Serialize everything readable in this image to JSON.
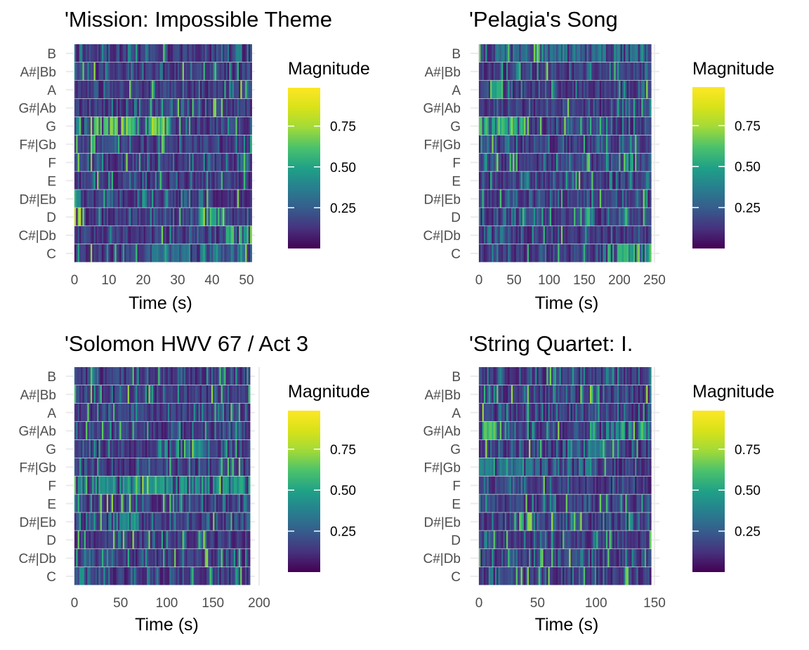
{
  "colors": {
    "viridis_low": "#440154",
    "viridis_mid": "#21918c",
    "viridis_high": "#fde725",
    "grid": "#ebebeb",
    "tick_text": "#4d4d4d",
    "title_text": "#000000"
  },
  "chart_data": [
    {
      "type": "heatmap",
      "title": "'Mission: Impossible Theme",
      "xlabel": "Time (s)",
      "ylabel": "",
      "pitch_classes": [
        "C",
        "C#|Db",
        "D",
        "D#|Eb",
        "E",
        "F",
        "F#|Gb",
        "G",
        "G#|Ab",
        "A",
        "A#|Bb",
        "B"
      ],
      "xlim": [
        0,
        52
      ],
      "xticks": [
        0,
        10,
        20,
        30,
        40,
        50
      ],
      "duration": 51.5,
      "legend": {
        "title": "Magnitude",
        "ticks": [
          0.25,
          0.5,
          0.75
        ],
        "placement": "right"
      },
      "highlights": [
        {
          "pitch": "G",
          "start": 4,
          "end": 27,
          "level": 0.85
        },
        {
          "pitch": "D",
          "start": 0,
          "end": 3,
          "level": 0.9
        },
        {
          "pitch": "D",
          "start": 36,
          "end": 42,
          "level": 0.8
        },
        {
          "pitch": "C#|Db",
          "start": 44,
          "end": 51.5,
          "level": 0.7
        },
        {
          "pitch": "D#|Eb",
          "start": 0,
          "end": 3,
          "level": 0.65
        },
        {
          "pitch": "C",
          "start": 20,
          "end": 50,
          "level": 0.45
        }
      ],
      "grid": true
    },
    {
      "type": "heatmap",
      "title": "'Pelagia's Song",
      "xlabel": "Time (s)",
      "ylabel": "",
      "pitch_classes": [
        "C",
        "C#|Db",
        "D",
        "D#|Eb",
        "E",
        "F",
        "F#|Gb",
        "G",
        "G#|Ab",
        "A",
        "A#|Bb",
        "B"
      ],
      "xlim": [
        0,
        250
      ],
      "xticks": [
        0,
        50,
        100,
        150,
        200,
        250
      ],
      "duration": 245,
      "legend": {
        "title": "Magnitude",
        "ticks": [
          0.25,
          0.5,
          0.75
        ],
        "placement": "right"
      },
      "highlights": [
        {
          "pitch": "G",
          "start": 0,
          "end": 70,
          "level": 0.8
        },
        {
          "pitch": "A",
          "start": 15,
          "end": 35,
          "level": 0.75
        },
        {
          "pitch": "F",
          "start": 200,
          "end": 225,
          "level": 0.75
        },
        {
          "pitch": "C",
          "start": 180,
          "end": 245,
          "level": 0.7
        },
        {
          "pitch": "B",
          "start": 20,
          "end": 240,
          "level": 0.45
        }
      ],
      "grid": true
    },
    {
      "type": "heatmap",
      "title": "'Solomon HWV 67 / Act 3",
      "xlabel": "Time (s)",
      "ylabel": "",
      "pitch_classes": [
        "C",
        "C#|Db",
        "D",
        "D#|Eb",
        "E",
        "F",
        "F#|Gb",
        "G",
        "G#|Ab",
        "A",
        "A#|Bb",
        "B"
      ],
      "xlim": [
        0,
        200
      ],
      "xticks": [
        0,
        50,
        100,
        150,
        200
      ],
      "duration": 190,
      "legend": {
        "title": "Magnitude",
        "ticks": [
          0.25,
          0.5,
          0.75
        ],
        "placement": "right"
      },
      "highlights": [
        {
          "pitch": "F",
          "start": 0,
          "end": 190,
          "level": 0.6
        },
        {
          "pitch": "A#|Bb",
          "start": 185,
          "end": 190,
          "level": 0.95
        },
        {
          "pitch": "D#|Eb",
          "start": 40,
          "end": 70,
          "level": 0.6
        },
        {
          "pitch": "G",
          "start": 90,
          "end": 150,
          "level": 0.55
        }
      ],
      "grid": true
    },
    {
      "type": "heatmap",
      "title": "'String Quartet: I.",
      "xlabel": "Time (s)",
      "ylabel": "",
      "pitch_classes": [
        "C",
        "C#|Db",
        "D",
        "D#|Eb",
        "E",
        "F",
        "F#|Gb",
        "G",
        "G#|Ab",
        "A",
        "A#|Bb",
        "B"
      ],
      "xlim": [
        0,
        150
      ],
      "xticks": [
        0,
        50,
        100,
        150
      ],
      "duration": 147,
      "legend": {
        "title": "Magnitude",
        "ticks": [
          0.25,
          0.5,
          0.75
        ],
        "placement": "right"
      },
      "highlights": [
        {
          "pitch": "G#|Ab",
          "start": 0,
          "end": 25,
          "level": 0.75
        },
        {
          "pitch": "D#|Eb",
          "start": 30,
          "end": 45,
          "level": 0.8
        },
        {
          "pitch": "G#|Ab",
          "start": 95,
          "end": 147,
          "level": 0.65
        },
        {
          "pitch": "F#|Gb",
          "start": 0,
          "end": 100,
          "level": 0.45
        },
        {
          "pitch": "G",
          "start": 70,
          "end": 110,
          "level": 0.5
        }
      ],
      "grid": true
    }
  ]
}
